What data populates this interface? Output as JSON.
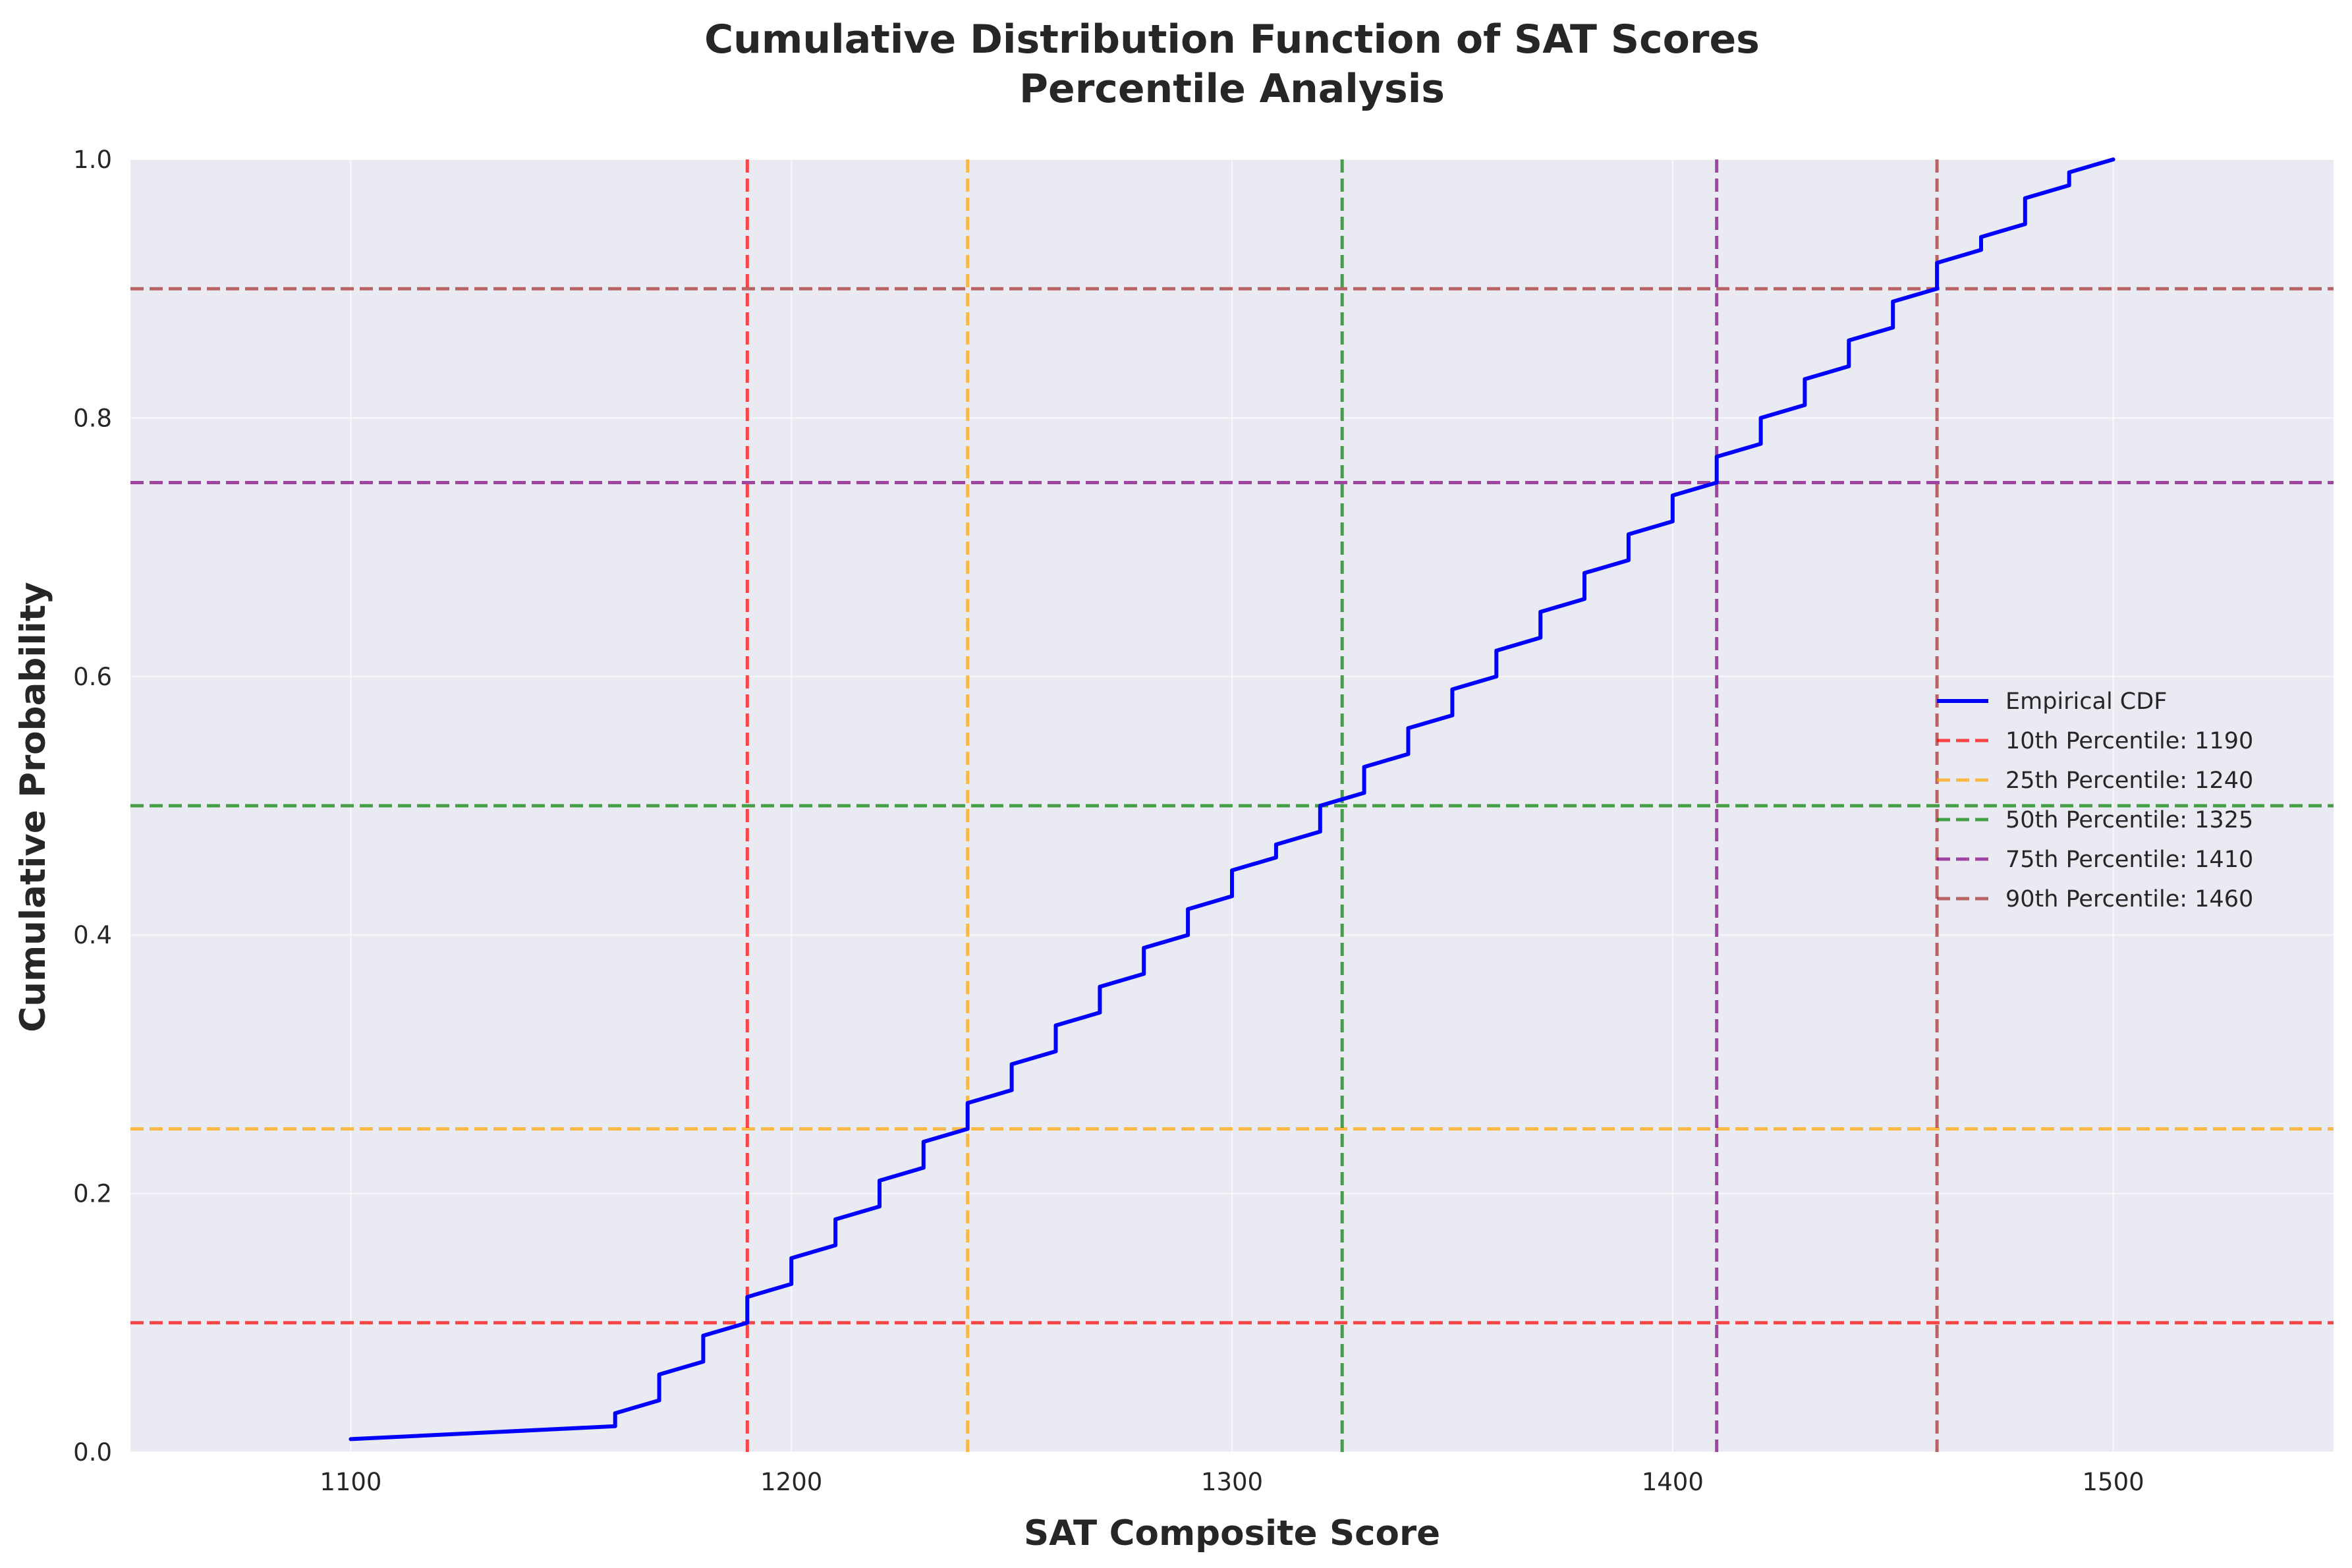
{
  "chart_data": {
    "type": "line",
    "title": "Cumulative Distribution Function of SAT Scores",
    "subtitle": "Percentile Analysis",
    "xlabel": "SAT Composite Score",
    "ylabel": "Cumulative Probability",
    "xlim": [
      1050,
      1550
    ],
    "ylim": [
      0.0,
      1.0
    ],
    "xticks": [
      1100,
      1200,
      1300,
      1400,
      1500
    ],
    "xtick_labels": [
      "1100",
      "1200",
      "1300",
      "1400",
      "1500"
    ],
    "yticks": [
      0.0,
      0.2,
      0.4,
      0.6,
      0.8,
      1.0
    ],
    "ytick_labels": [
      "0.0",
      "0.2",
      "0.4",
      "0.6",
      "0.8",
      "1.0"
    ],
    "grid": true,
    "background_color": "#EAEAF2",
    "legend_position": "center-right",
    "series": [
      {
        "name": "Empirical CDF",
        "color": "#0000FF",
        "style": "solid",
        "x": [
          1100,
          1160,
          1160,
          1170,
          1170,
          1180,
          1180,
          1190,
          1190,
          1200,
          1200,
          1210,
          1210,
          1220,
          1220,
          1230,
          1230,
          1240,
          1240,
          1250,
          1250,
          1260,
          1260,
          1270,
          1270,
          1280,
          1280,
          1290,
          1290,
          1300,
          1300,
          1310,
          1310,
          1320,
          1320,
          1330,
          1330,
          1340,
          1340,
          1350,
          1350,
          1360,
          1360,
          1370,
          1370,
          1380,
          1380,
          1390,
          1390,
          1400,
          1400,
          1410,
          1410,
          1420,
          1420,
          1430,
          1430,
          1440,
          1440,
          1450,
          1450,
          1460,
          1460,
          1470,
          1470,
          1480,
          1480,
          1490,
          1490,
          1500
        ],
        "y": [
          0.01,
          0.02,
          0.03,
          0.04,
          0.06,
          0.07,
          0.09,
          0.1,
          0.12,
          0.13,
          0.15,
          0.16,
          0.18,
          0.19,
          0.21,
          0.22,
          0.24,
          0.25,
          0.27,
          0.28,
          0.3,
          0.31,
          0.33,
          0.34,
          0.36,
          0.37,
          0.39,
          0.4,
          0.42,
          0.43,
          0.45,
          0.46,
          0.47,
          0.48,
          0.5,
          0.51,
          0.53,
          0.54,
          0.56,
          0.57,
          0.59,
          0.6,
          0.62,
          0.63,
          0.65,
          0.66,
          0.68,
          0.69,
          0.71,
          0.72,
          0.74,
          0.75,
          0.77,
          0.78,
          0.8,
          0.81,
          0.83,
          0.84,
          0.86,
          0.87,
          0.89,
          0.9,
          0.92,
          0.93,
          0.94,
          0.95,
          0.97,
          0.98,
          0.99,
          1.0
        ]
      }
    ],
    "percentiles": [
      {
        "name": "10th Percentile: 1190",
        "percentile": 0.1,
        "score": 1190,
        "color": "#FF0000"
      },
      {
        "name": "25th Percentile: 1240",
        "percentile": 0.25,
        "score": 1240,
        "color": "#FFA500"
      },
      {
        "name": "50th Percentile: 1325",
        "percentile": 0.5,
        "score": 1325,
        "color": "#008000"
      },
      {
        "name": "75th Percentile: 1410",
        "percentile": 0.75,
        "score": 1410,
        "color": "#800080"
      },
      {
        "name": "90th Percentile: 1460",
        "percentile": 0.9,
        "score": 1460,
        "color": "#A52A2A"
      }
    ]
  }
}
